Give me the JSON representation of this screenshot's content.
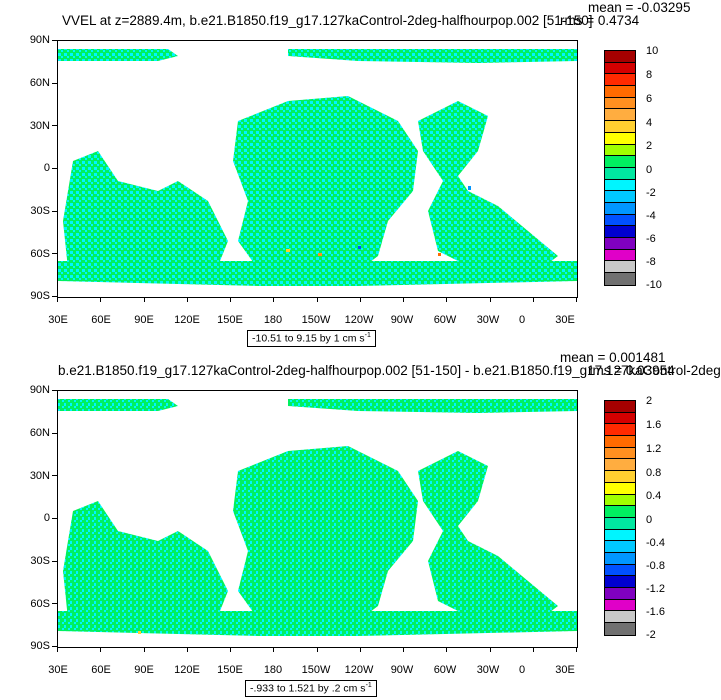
{
  "panels": [
    {
      "title": "VVEL at z=2889.4m, b.e21.B1850.f19_g17.127kaControl-2deg-halfhourpop.002 [51-150]",
      "mean": "mean = -0.03295",
      "rms": "rms = 0.4734",
      "range": "-10.51 to 9.15 by 1 cm s",
      "range_sup": "-1",
      "y_ticks": [
        "90N",
        "60N",
        "30N",
        "0",
        "30S",
        "60S",
        "90S"
      ],
      "x_ticks": [
        "30E",
        "60E",
        "90E",
        "120E",
        "150E",
        "180",
        "150W",
        "120W",
        "90W",
        "60W",
        "30W",
        "0",
        "30E"
      ],
      "colorbar_labels": [
        "10",
        "8",
        "6",
        "4",
        "2",
        "0",
        "-2",
        "-4",
        "-6",
        "-8",
        "-10"
      ],
      "colorbar_colors": [
        "#a50000",
        "#d40000",
        "#ff2a00",
        "#ff6a00",
        "#ff9020",
        "#ffad40",
        "#ffd030",
        "#ffff00",
        "#a0ff00",
        "#00f060",
        "#00e8a0",
        "#00f5ff",
        "#00c8ff",
        "#0096ff",
        "#0050ff",
        "#0000d0",
        "#8000c0",
        "#e000c8",
        "#c8c8c8",
        "#707070"
      ]
    },
    {
      "title": "b.e21.B1850.f19_g17.127kaControl-2deg-halfhourpop.002 [51-150] - b.e21.B1850.f19_g17.127kaControl-2deg",
      "mean": "mean = 0.001481",
      "rms": "rms = 0.03954",
      "range": "-.933 to 1.521 by .2 cm s",
      "range_sup": "-1",
      "y_ticks": [
        "90N",
        "60N",
        "30N",
        "0",
        "30S",
        "60S",
        "90S"
      ],
      "x_ticks": [
        "30E",
        "60E",
        "90E",
        "120E",
        "150E",
        "180",
        "150W",
        "120W",
        "90W",
        "60W",
        "30W",
        "0",
        "30E"
      ],
      "colorbar_labels": [
        "2",
        "1.6",
        "1.2",
        "0.8",
        "0.4",
        "0",
        "-0.4",
        "-0.8",
        "-1.2",
        "-1.6",
        "-2"
      ],
      "colorbar_colors": [
        "#a50000",
        "#d40000",
        "#ff2a00",
        "#ff6a00",
        "#ff9020",
        "#ffad40",
        "#ffd030",
        "#ffff00",
        "#a0ff00",
        "#00f060",
        "#00e8a0",
        "#00f5ff",
        "#00c8ff",
        "#0096ff",
        "#0050ff",
        "#0000d0",
        "#8000c0",
        "#e000c8",
        "#c8c8c8",
        "#707070"
      ]
    }
  ],
  "map_colors": {
    "ocean_primary": "#00f060",
    "ocean_secondary": "#00f5ff",
    "land": "#ffffff"
  }
}
